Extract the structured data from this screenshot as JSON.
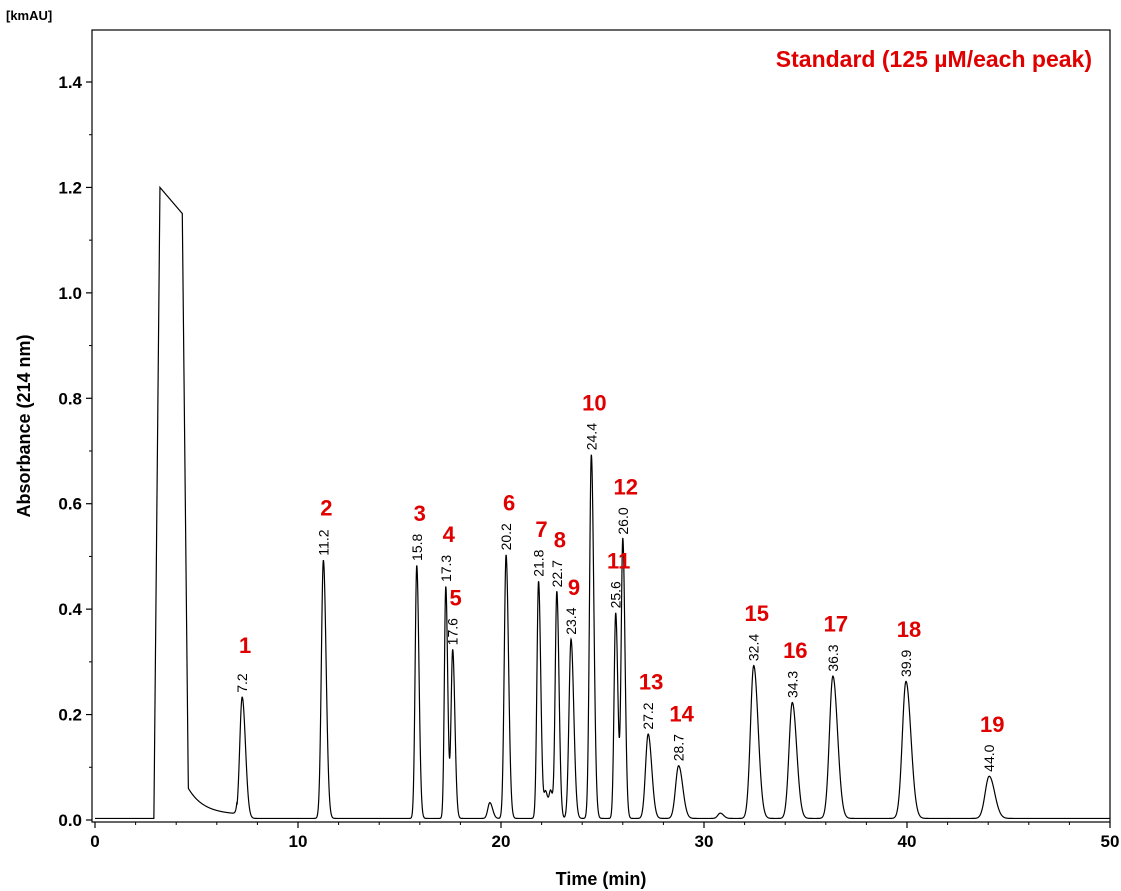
{
  "chart_data": {
    "type": "line",
    "title": "Standard (125 µM/each peak)",
    "xlabel": "Time (min)",
    "ylabel": "Absorbance (214 nm)",
    "y_unit": "[kmAU]",
    "xlim": [
      0,
      50
    ],
    "ylim": [
      0,
      1.5
    ],
    "x_ticks": [
      "0",
      "10",
      "20",
      "30",
      "40",
      "50"
    ],
    "y_ticks": [
      "0.0",
      "0.2",
      "0.4",
      "0.6",
      "0.8",
      "1.0",
      "1.2",
      "1.4"
    ],
    "baseline": 0.003,
    "solvent_front": {
      "start": 2.9,
      "rise_end": 3.2,
      "plateau": 1.2,
      "fall_start": 4.3,
      "fall_end": 4.6
    },
    "series": [
      {
        "peaks": [
          {
            "number": "1",
            "rt": "7.2",
            "x": 7.25,
            "y": 0.23,
            "w": 0.12
          },
          {
            "number": "2",
            "rt": "11.2",
            "x": 11.25,
            "y": 0.49,
            "w": 0.1
          },
          {
            "number": "3",
            "rt": "15.8",
            "x": 15.85,
            "y": 0.48,
            "w": 0.08
          },
          {
            "number": "4",
            "rt": "17.3",
            "x": 17.28,
            "y": 0.44,
            "w": 0.07
          },
          {
            "number": "5",
            "rt": "17.6",
            "x": 17.62,
            "y": 0.32,
            "w": 0.08
          },
          {
            "number": "6",
            "rt": "20.2",
            "x": 20.25,
            "y": 0.5,
            "w": 0.09
          },
          {
            "number": "7",
            "rt": "21.8",
            "x": 21.85,
            "y": 0.45,
            "w": 0.08
          },
          {
            "number": "8",
            "rt": "22.7",
            "x": 22.75,
            "y": 0.43,
            "w": 0.08
          },
          {
            "number": "9",
            "rt": "23.4",
            "x": 23.45,
            "y": 0.34,
            "w": 0.1
          },
          {
            "number": "10",
            "rt": "24.4",
            "x": 24.45,
            "y": 0.69,
            "w": 0.09
          },
          {
            "number": "11",
            "rt": "25.6",
            "x": 25.65,
            "y": 0.39,
            "w": 0.08
          },
          {
            "number": "12",
            "rt": "26.0",
            "x": 26.0,
            "y": 0.53,
            "w": 0.08
          },
          {
            "number": "13",
            "rt": "27.2",
            "x": 27.25,
            "y": 0.16,
            "w": 0.13
          },
          {
            "number": "14",
            "rt": "28.7",
            "x": 28.75,
            "y": 0.1,
            "w": 0.15
          },
          {
            "number": "15",
            "rt": "32.4",
            "x": 32.45,
            "y": 0.29,
            "w": 0.16
          },
          {
            "number": "16",
            "rt": "34.3",
            "x": 34.35,
            "y": 0.22,
            "w": 0.16
          },
          {
            "number": "17",
            "rt": "36.3",
            "x": 36.35,
            "y": 0.27,
            "w": 0.17
          },
          {
            "number": "18",
            "rt": "39.9",
            "x": 39.95,
            "y": 0.26,
            "w": 0.18
          },
          {
            "number": "19",
            "rt": "44.0",
            "x": 44.05,
            "y": 0.08,
            "w": 0.2
          }
        ],
        "minor_peaks": [
          {
            "x": 19.45,
            "y": 0.03,
            "w": 0.1
          },
          {
            "x": 22.2,
            "y": 0.05,
            "w": 0.08
          },
          {
            "x": 22.45,
            "y": 0.05,
            "w": 0.08
          },
          {
            "x": 30.8,
            "y": 0.01,
            "w": 0.12
          }
        ]
      }
    ]
  }
}
